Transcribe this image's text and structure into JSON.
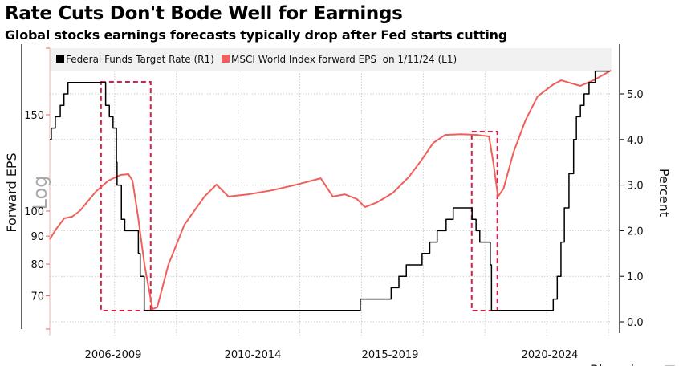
{
  "header": {
    "title": "Rate Cuts Don't Bode Well for Earnings",
    "subtitle": "Global stocks earnings forecasts typically drop after Fed starts cutting"
  },
  "chart_data": {
    "type": "line",
    "legend_placement": "top-left",
    "grid": true,
    "xlim": [
      2005.9,
      2024.1
    ],
    "x_category_labels": [
      "2006-2009",
      "2010-2014",
      "2015-2019",
      "2020-2024"
    ],
    "y_left": {
      "label": "Forward EPS",
      "scale": "log",
      "scale_watermark": "Log",
      "ticks": [
        70,
        80,
        90,
        100,
        150
      ],
      "lim": [
        58,
        200
      ]
    },
    "y_right": {
      "label": "Percent",
      "scale": "linear",
      "ticks": [
        "0.0",
        "1.0",
        "2.0",
        "3.0",
        "4.0",
        "5.0"
      ],
      "lim": [
        -0.15,
        6.0
      ]
    },
    "series": [
      {
        "name": "Federal Funds Target Rate (R1)",
        "axis": "right",
        "color": "#000000",
        "step": true,
        "x": [
          2005.9,
          2005.95,
          2006.08,
          2006.24,
          2006.36,
          2006.49,
          2007.71,
          2007.83,
          2007.95,
          2008.06,
          2008.08,
          2008.22,
          2008.33,
          2008.77,
          2008.83,
          2008.96,
          2015.96,
          2016.96,
          2017.21,
          2017.45,
          2017.96,
          2018.21,
          2018.45,
          2018.74,
          2018.97,
          2019.58,
          2019.71,
          2019.83,
          2020.17,
          2020.21,
          2022.21,
          2022.34,
          2022.46,
          2022.57,
          2022.72,
          2022.87,
          2022.96,
          2023.09,
          2023.21,
          2023.37,
          2023.57,
          2024.03
        ],
        "y": [
          4.0,
          4.25,
          4.5,
          4.75,
          5.0,
          5.25,
          4.75,
          4.5,
          4.25,
          3.5,
          3.0,
          2.25,
          2.0,
          1.5,
          1.0,
          0.25,
          0.5,
          0.75,
          1.0,
          1.25,
          1.5,
          1.75,
          2.0,
          2.25,
          2.5,
          2.25,
          2.0,
          1.75,
          1.25,
          0.25,
          0.5,
          1.0,
          1.75,
          2.5,
          3.25,
          4.0,
          4.5,
          4.75,
          5.0,
          5.25,
          5.5,
          5.5
        ]
      },
      {
        "name": "MSCI World Index forward EPS  on 1/11/24 (L1)",
        "axis": "left",
        "color": "#f0605a",
        "step": false,
        "x": [
          2005.9,
          2006.11,
          2006.37,
          2006.63,
          2006.89,
          2007.15,
          2007.41,
          2007.8,
          2008.19,
          2008.45,
          2008.58,
          2008.76,
          2008.97,
          2009.23,
          2009.38,
          2009.74,
          2010.26,
          2010.91,
          2011.3,
          2011.69,
          2012.34,
          2013.12,
          2013.9,
          2014.68,
          2015.07,
          2015.46,
          2015.85,
          2016.11,
          2016.5,
          2017.02,
          2017.54,
          2017.93,
          2018.32,
          2018.71,
          2019.22,
          2019.74,
          2020.13,
          2020.26,
          2020.42,
          2020.6,
          2020.92,
          2021.31,
          2021.7,
          2022.22,
          2022.47,
          2023.09,
          2023.51,
          2024.08
        ],
        "y": [
          88.8,
          92.8,
          97,
          97.7,
          100.3,
          104.5,
          108.8,
          113.7,
          116.4,
          116.8,
          113.7,
          97.7,
          79.7,
          66.2,
          66.7,
          79.7,
          94.4,
          106.3,
          111.8,
          106.3,
          107.3,
          109.2,
          111.8,
          114.8,
          106.3,
          107.3,
          105.2,
          101.7,
          103.7,
          108,
          115.6,
          123.7,
          133.2,
          137.8,
          138.2,
          137.8,
          136.9,
          123.7,
          106.3,
          109.9,
          127.9,
          146.5,
          162,
          170.5,
          173.4,
          169.4,
          173.4,
          180.7
        ]
      }
    ],
    "highlight_periods": [
      {
        "start": 2007.56,
        "end": 2009.17,
        "color": "#d81e4a"
      },
      {
        "start": 2019.57,
        "end": 2020.4,
        "color": "#d81e4a"
      }
    ]
  },
  "footer": {
    "source_logo": "Bloomberg"
  }
}
